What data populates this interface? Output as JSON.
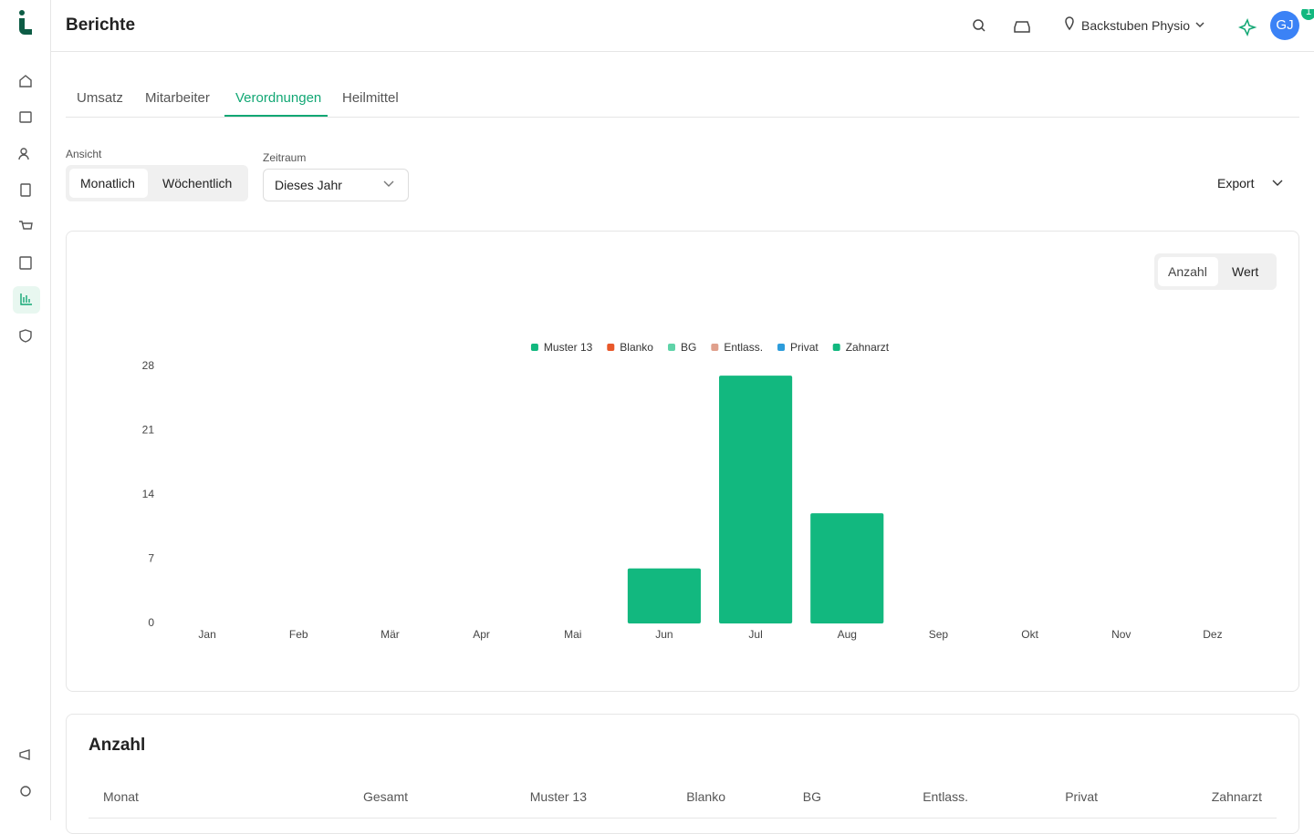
{
  "header": {
    "title": "Berichte",
    "location": "Backstuben Physio",
    "notification_count": 1,
    "avatar": "GJ"
  },
  "tabs": [
    "Umsatz",
    "Mitarbeiter",
    "Verordnungen",
    "Heilmittel"
  ],
  "view": {
    "label": "Ansicht",
    "options": [
      "Monatlich",
      "Wöchentlich"
    ]
  },
  "period": {
    "label": "Zeitraum",
    "value": "Dieses Jahr"
  },
  "export": "Export",
  "chart_toggle": [
    "Anzahl",
    "Wert"
  ],
  "chart_data": {
    "type": "stacked-bar",
    "categories": [
      "Jan",
      "Feb",
      "Mär",
      "Apr",
      "Mai",
      "Jun",
      "Jul",
      "Aug",
      "Sep",
      "Okt",
      "Nov",
      "Dez"
    ],
    "series": [
      {
        "name": "Muster 13",
        "color": "#12b87f",
        "values": [
          0,
          0,
          0,
          0,
          0,
          6,
          27,
          12,
          0,
          0,
          0,
          0
        ]
      },
      {
        "name": "Blanko",
        "color": "#e8582a",
        "values": [
          0,
          0,
          0,
          0,
          0,
          0,
          0,
          0,
          0,
          0,
          0,
          0
        ]
      },
      {
        "name": "BG",
        "color": "#5fd3a8",
        "values": [
          0,
          0,
          0,
          0,
          0,
          0,
          0,
          0,
          0,
          0,
          0,
          0
        ]
      },
      {
        "name": "Entlass.",
        "color": "#e0a08c",
        "values": [
          0,
          0,
          0,
          0,
          0,
          0,
          0,
          0,
          0,
          0,
          0,
          0
        ]
      },
      {
        "name": "Privat",
        "color": "#2d9cdb",
        "values": [
          0,
          0,
          0,
          0,
          0,
          0,
          0,
          0,
          0,
          0,
          0,
          0
        ]
      },
      {
        "name": "Zahnarzt",
        "color": "#12b87f",
        "values": [
          0,
          0,
          0,
          0,
          0,
          0,
          0,
          0,
          0,
          0,
          0,
          0
        ]
      }
    ],
    "ylim": [
      0,
      28
    ],
    "yticks": [
      0,
      7,
      14,
      21,
      28
    ],
    "grid": false,
    "legend": "top"
  },
  "table": {
    "title": "Anzahl",
    "columns": [
      "Monat",
      "Gesamt",
      "Muster 13",
      "Blanko",
      "BG",
      "Entlass.",
      "Privat",
      "Zahnarzt"
    ]
  }
}
